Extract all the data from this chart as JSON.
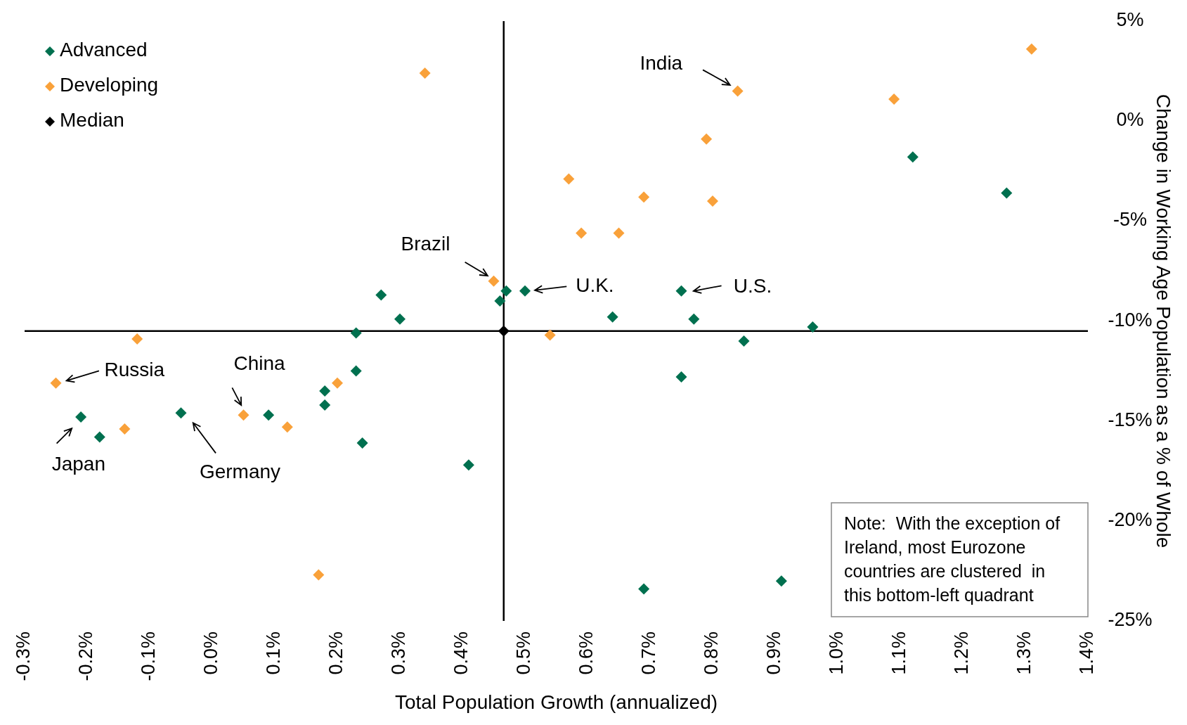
{
  "chart_data": {
    "type": "scatter",
    "xlabel": "Total Population Growth (annualized)",
    "ylabel": "Change in Working Age Population as a % of Whole",
    "xlim": [
      -0.3,
      1.4
    ],
    "xticks": [
      {
        "value": -0.3,
        "label": "-0.3%"
      },
      {
        "value": -0.2,
        "label": "-0.2%"
      },
      {
        "value": -0.1,
        "label": "-0.1%"
      },
      {
        "value": 0,
        "label": "0.0%"
      },
      {
        "value": 0.1,
        "label": "0.1%"
      },
      {
        "value": 0.2,
        "label": "0.2%"
      },
      {
        "value": 0.3,
        "label": "0.3%"
      },
      {
        "value": 0.4,
        "label": "0.4%"
      },
      {
        "value": 0.5,
        "label": "0.5%"
      },
      {
        "value": 0.6,
        "label": "0.6%"
      },
      {
        "value": 0.7,
        "label": "0.7%"
      },
      {
        "value": 0.8,
        "label": "0.8%"
      },
      {
        "value": 0.9,
        "label": "0.9%"
      },
      {
        "value": 1.0,
        "label": "1.0%"
      },
      {
        "value": 1.1,
        "label": "1.1%"
      },
      {
        "value": 1.2,
        "label": "1.2%"
      },
      {
        "value": 1.3,
        "label": "1.3%"
      },
      {
        "value": 1.4,
        "label": "1.4%"
      }
    ],
    "ylim": [
      -25,
      5
    ],
    "yticks": [
      {
        "value": 5,
        "label": "5%"
      },
      {
        "value": 0,
        "label": "0%"
      },
      {
        "value": -5,
        "label": "-5%"
      },
      {
        "value": -10,
        "label": "-10%"
      },
      {
        "value": -15,
        "label": "-15%"
      },
      {
        "value": -20,
        "label": "-20%"
      },
      {
        "value": -25,
        "label": "-25%"
      }
    ],
    "grid": false,
    "legend": "top left",
    "marker": "diamond",
    "series": [
      {
        "name": "Advanced",
        "color": "#00704f",
        "x": [
          1.12,
          1.27,
          0.27,
          0.3,
          0.47,
          0.5,
          0.46,
          0.23,
          0.64,
          0.75,
          0.77,
          0.96,
          0.85,
          0.75,
          0.23,
          0.18,
          0.18,
          0.09,
          -0.05,
          -0.21,
          -0.18,
          0.24,
          0.41,
          0.69,
          0.91
        ],
        "values": [
          -1.8,
          -3.6,
          -8.7,
          -9.9,
          -8.5,
          -8.5,
          -9,
          -10.6,
          -9.8,
          -8.5,
          -9.9,
          -10.3,
          -11,
          -12.8,
          -12.5,
          -13.5,
          -14.2,
          -14.7,
          -14.6,
          -14.8,
          -15.8,
          -16.1,
          -17.2,
          -23.4,
          -23
        ]
      },
      {
        "name": "Developing",
        "color": "#f9a13a",
        "x": [
          1.31,
          0.34,
          0.84,
          1.09,
          0.79,
          0.57,
          0.69,
          0.8,
          0.59,
          0.65,
          0.45,
          0.54,
          -0.12,
          -0.25,
          0.2,
          0.05,
          0.12,
          -0.14,
          0.17
        ],
        "values": [
          3.6,
          2.4,
          1.5,
          1.1,
          -0.9,
          -2.9,
          -3.8,
          -4,
          -5.6,
          -5.6,
          -8,
          -10.7,
          -10.9,
          -13.1,
          -13.1,
          -14.7,
          -15.3,
          -15.4,
          -22.7
        ]
      },
      {
        "name": "Median",
        "color": "#000000",
        "x": [
          0.466
        ],
        "values": [
          -10.5
        ]
      }
    ],
    "ref_lines": [
      {
        "axis": "x",
        "value": 0.466,
        "color": "#000000"
      },
      {
        "axis": "y",
        "value": -10.5,
        "color": "#000000"
      }
    ],
    "annotations": [
      {
        "text": "India",
        "x": 0.84,
        "y": 1.5
      },
      {
        "text": "Brazil",
        "x": 0.45,
        "y": -8
      },
      {
        "text": "U.K.",
        "x": 0.5,
        "y": -8.5
      },
      {
        "text": "U.S.",
        "x": 0.75,
        "y": -8.5
      },
      {
        "text": "Russia",
        "x": -0.25,
        "y": -13.1
      },
      {
        "text": "Japan",
        "x": -0.21,
        "y": -14.8
      },
      {
        "text": "China",
        "x": 0.05,
        "y": -14.7
      },
      {
        "text": "Germany",
        "x": -0.05,
        "y": -14.6
      },
      "Note:  With the exception of Ireland, most Eurozone countries are clustered  in this bottom-left quadrant"
    ]
  }
}
